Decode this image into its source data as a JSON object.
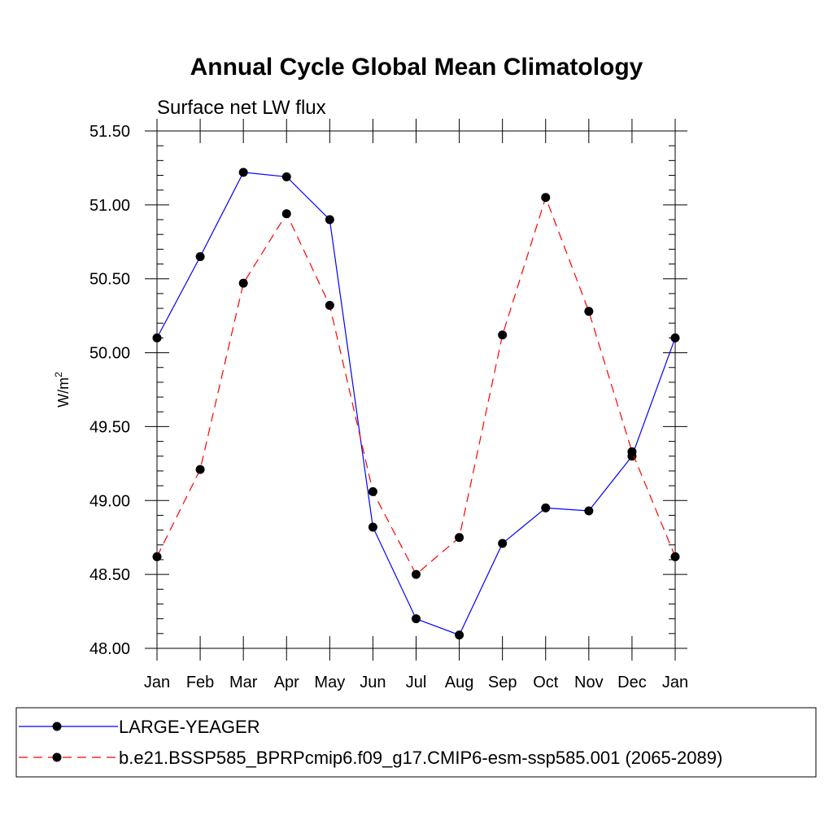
{
  "chart_data": {
    "type": "line",
    "title": "Annual Cycle Global Mean Climatology",
    "subtitle": "Surface net LW flux",
    "ylabel": "W/m",
    "ylabel_superscript": "2",
    "xlabel": "",
    "categories": [
      "Jan",
      "Feb",
      "Mar",
      "Apr",
      "May",
      "Jun",
      "Jul",
      "Aug",
      "Sep",
      "Oct",
      "Nov",
      "Dec",
      "Jan"
    ],
    "ylim": [
      48.0,
      51.5
    ],
    "yticks": [
      "48.00",
      "48.50",
      "49.00",
      "49.50",
      "50.00",
      "50.50",
      "51.00",
      "51.50"
    ],
    "ytick_values": [
      48.0,
      48.5,
      49.0,
      49.5,
      50.0,
      50.5,
      51.0,
      51.5
    ],
    "series": [
      {
        "name": "LARGE-YEAGER",
        "color": "#0000ff",
        "dash": "solid",
        "marker": "filled-circle",
        "values": [
          50.1,
          50.65,
          51.22,
          51.19,
          50.9,
          48.82,
          48.2,
          48.09,
          48.71,
          48.95,
          48.93,
          49.3,
          50.1
        ]
      },
      {
        "name": "b.e21.BSSP585_BPRPcmip6.f09_g17.CMIP6-esm-ssp585.001 (2065-2089)",
        "color": "#ff0000",
        "dash": "dashed",
        "marker": "filled-circle",
        "values": [
          48.62,
          49.21,
          50.47,
          50.94,
          50.32,
          49.06,
          48.5,
          48.75,
          50.12,
          51.05,
          50.28,
          49.33,
          48.62
        ]
      }
    ],
    "legend_position": "bottom"
  }
}
